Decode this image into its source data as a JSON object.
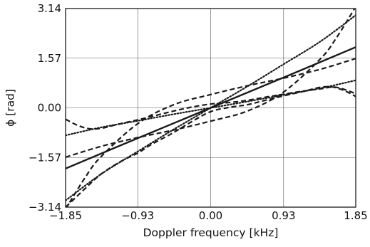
{
  "chart_data": {
    "type": "line",
    "title": "",
    "xlabel": "Doppler frequency [kHz]",
    "ylabel": "ϕ [rad]",
    "xlim": [
      -1.85,
      1.85
    ],
    "ylim": [
      -3.14,
      3.14
    ],
    "x_ticks": [
      {
        "value": -1.85,
        "label": "−1.85"
      },
      {
        "value": -0.93,
        "label": "−0.93"
      },
      {
        "value": 0.0,
        "label": "0.00"
      },
      {
        "value": 0.93,
        "label": "0.93"
      },
      {
        "value": 1.85,
        "label": "1.85"
      }
    ],
    "y_ticks": [
      {
        "value": -3.14,
        "label": "−3.14"
      },
      {
        "value": -1.57,
        "label": "−1.57"
      },
      {
        "value": 0.0,
        "label": "0.00"
      },
      {
        "value": 1.57,
        "label": "1.57"
      },
      {
        "value": 3.14,
        "label": "3.14"
      }
    ],
    "grid": true,
    "line_color": "#1a1a1a",
    "grid_color": "#555555",
    "series": [
      {
        "style": "solid",
        "x": [
          -1.85,
          -0.93,
          0.0,
          0.93,
          1.85
        ],
        "y": [
          -1.92,
          -0.96,
          0.0,
          0.96,
          1.92
        ]
      },
      {
        "style": "dotted",
        "x": [
          -1.85,
          -1.4,
          -0.93,
          -0.47,
          0.0,
          0.47,
          0.93,
          1.4,
          1.85
        ],
        "y": [
          -2.93,
          -2.1,
          -1.38,
          -0.68,
          0.0,
          0.68,
          1.38,
          2.1,
          2.93
        ]
      },
      {
        "style": "dotted",
        "x": [
          -1.85,
          -1.4,
          -0.93,
          -0.47,
          0.0,
          0.47,
          0.93,
          1.4,
          1.85
        ],
        "y": [
          -0.87,
          -0.62,
          -0.41,
          -0.2,
          0.0,
          0.2,
          0.41,
          0.62,
          0.87
        ]
      },
      {
        "style": "dashed",
        "x": [
          -1.85,
          -1.7,
          -1.55,
          -1.4,
          -1.2,
          -0.93,
          -0.7,
          -0.47,
          -0.25,
          0.0,
          0.25,
          0.5,
          0.75,
          0.93,
          1.15,
          1.4,
          1.6,
          1.85
        ],
        "y": [
          -0.36,
          -0.55,
          -0.66,
          -0.65,
          -0.53,
          -0.38,
          -0.24,
          -0.1,
          0.02,
          0.12,
          0.17,
          0.25,
          0.36,
          0.43,
          0.52,
          0.6,
          0.65,
          0.45
        ]
      },
      {
        "style": "dashed",
        "x": [
          -1.85,
          -1.6,
          -1.4,
          -1.15,
          -0.93,
          -0.75,
          -0.5,
          -0.25,
          0.0,
          0.25,
          0.47,
          0.7,
          0.93,
          1.2,
          1.4,
          1.55,
          1.7,
          1.85
        ],
        "y": [
          -3.14,
          -2.55,
          -2.1,
          -1.7,
          -1.43,
          -1.15,
          -0.82,
          -0.45,
          -0.12,
          0.02,
          0.1,
          0.24,
          0.38,
          0.53,
          0.65,
          0.66,
          0.55,
          0.36
        ]
      },
      {
        "style": "dashed",
        "x": [
          -1.85,
          -1.4,
          -0.93,
          -0.47,
          0.0,
          0.47,
          0.93,
          1.4,
          1.6,
          1.85
        ],
        "y": [
          -1.56,
          -1.22,
          -0.94,
          -0.7,
          -0.42,
          -0.1,
          0.5,
          1.55,
          2.2,
          3.2
        ]
      },
      {
        "style": "dashed",
        "x": [
          -1.85,
          -1.6,
          -1.4,
          -0.93,
          -0.47,
          0.0,
          0.47,
          0.93,
          1.4,
          1.85
        ],
        "y": [
          -3.2,
          -2.2,
          -1.55,
          -0.5,
          0.1,
          0.42,
          0.7,
          0.94,
          1.22,
          1.56
        ]
      }
    ]
  }
}
